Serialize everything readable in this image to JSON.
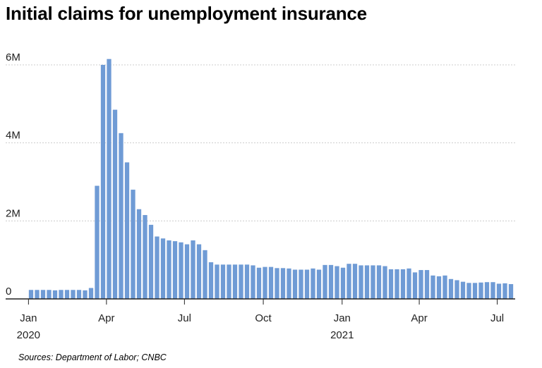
{
  "chart_data": {
    "type": "bar",
    "title": "Initial claims for unemployment insurance",
    "source": "Sources:  Department of Labor; CNBC",
    "xlabel": "",
    "ylabel": "",
    "bar_color": "#6f9bd5",
    "grid_color": "#cccccc",
    "ylim": [
      0,
      6000000
    ],
    "yticks": [
      {
        "value": 0,
        "label": "0"
      },
      {
        "value": 2000000,
        "label": "2M"
      },
      {
        "value": 4000000,
        "label": "4M"
      },
      {
        "value": 6000000,
        "label": "6M"
      }
    ],
    "xticks": [
      {
        "date": "2020-01-01",
        "label": "Jan",
        "year": "2020"
      },
      {
        "date": "2020-04-01",
        "label": "Apr",
        "year": ""
      },
      {
        "date": "2020-07-01",
        "label": "Jul",
        "year": ""
      },
      {
        "date": "2020-10-01",
        "label": "Oct",
        "year": ""
      },
      {
        "date": "2021-01-01",
        "label": "Jan",
        "year": "2021"
      },
      {
        "date": "2021-04-01",
        "label": "Apr",
        "year": ""
      },
      {
        "date": "2021-07-01",
        "label": "Jul",
        "year": ""
      }
    ],
    "x": [
      "2020-01-04",
      "2020-01-11",
      "2020-01-18",
      "2020-01-25",
      "2020-02-01",
      "2020-02-08",
      "2020-02-15",
      "2020-02-22",
      "2020-02-29",
      "2020-03-07",
      "2020-03-14",
      "2020-03-21",
      "2020-03-28",
      "2020-04-04",
      "2020-04-11",
      "2020-04-18",
      "2020-04-25",
      "2020-05-02",
      "2020-05-09",
      "2020-05-16",
      "2020-05-23",
      "2020-05-30",
      "2020-06-06",
      "2020-06-13",
      "2020-06-20",
      "2020-06-27",
      "2020-07-04",
      "2020-07-11",
      "2020-07-18",
      "2020-07-25",
      "2020-08-01",
      "2020-08-08",
      "2020-08-15",
      "2020-08-22",
      "2020-08-29",
      "2020-09-05",
      "2020-09-12",
      "2020-09-19",
      "2020-09-26",
      "2020-10-03",
      "2020-10-10",
      "2020-10-17",
      "2020-10-24",
      "2020-10-31",
      "2020-11-07",
      "2020-11-14",
      "2020-11-21",
      "2020-11-28",
      "2020-12-05",
      "2020-12-12",
      "2020-12-19",
      "2020-12-26",
      "2021-01-02",
      "2021-01-09",
      "2021-01-16",
      "2021-01-23",
      "2021-01-30",
      "2021-02-06",
      "2021-02-13",
      "2021-02-20",
      "2021-02-27",
      "2021-03-06",
      "2021-03-13",
      "2021-03-20",
      "2021-03-27",
      "2021-04-03",
      "2021-04-10",
      "2021-04-17",
      "2021-04-24",
      "2021-05-01",
      "2021-05-08",
      "2021-05-15",
      "2021-05-22",
      "2021-05-29",
      "2021-06-05",
      "2021-06-12",
      "2021-06-19",
      "2021-06-26",
      "2021-07-03",
      "2021-07-10",
      "2021-07-17"
    ],
    "values": [
      230000,
      230000,
      230000,
      230000,
      220000,
      230000,
      230000,
      230000,
      230000,
      220000,
      280000,
      2900000,
      6000000,
      6150000,
      4850000,
      4250000,
      3500000,
      2800000,
      2300000,
      2150000,
      1900000,
      1600000,
      1550000,
      1500000,
      1480000,
      1450000,
      1400000,
      1500000,
      1400000,
      1250000,
      940000,
      880000,
      880000,
      880000,
      880000,
      880000,
      880000,
      860000,
      800000,
      820000,
      820000,
      790000,
      790000,
      780000,
      750000,
      750000,
      750000,
      780000,
      750000,
      870000,
      870000,
      840000,
      800000,
      900000,
      900000,
      860000,
      860000,
      860000,
      860000,
      840000,
      760000,
      760000,
      760000,
      780000,
      680000,
      740000,
      740000,
      600000,
      580000,
      600000,
      510000,
      480000,
      440000,
      410000,
      410000,
      420000,
      430000,
      430000,
      390000,
      400000,
      380000
    ]
  }
}
